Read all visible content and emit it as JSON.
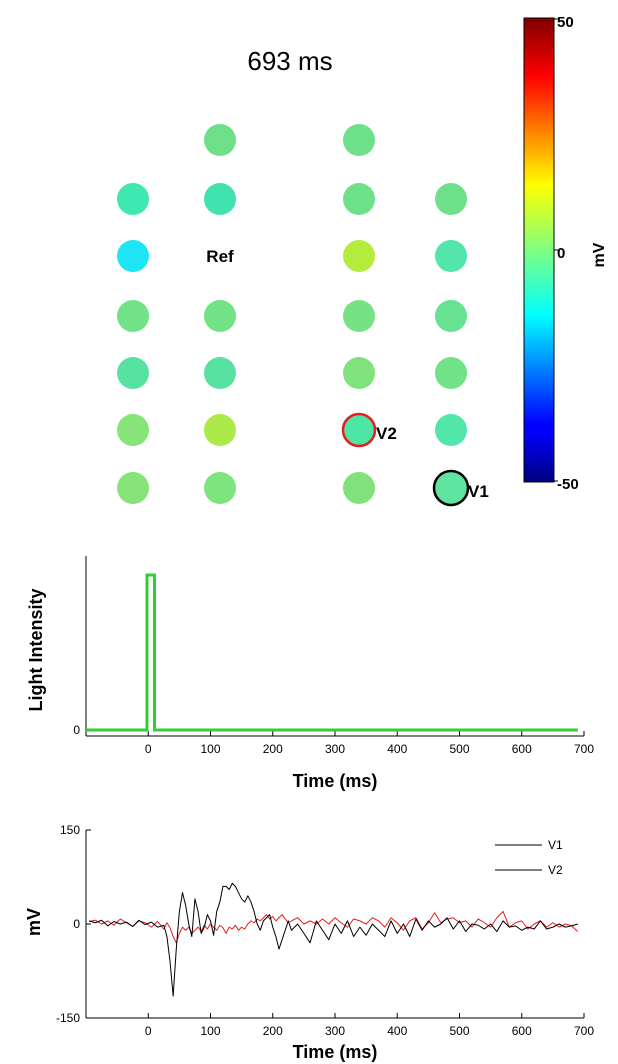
{
  "frame_label": "693 ms",
  "electrode_map": {
    "ref_label": "Ref",
    "marked": [
      {
        "label": "V2",
        "ring_color": "#e02020"
      },
      {
        "label": "V1",
        "ring_color": "#000000"
      }
    ],
    "electrodes": [
      {
        "col": 1,
        "row": 0,
        "color": "#6fe08a"
      },
      {
        "col": 2,
        "row": 0,
        "color": "#6fe08a"
      },
      {
        "col": 0,
        "row": 1,
        "color": "#3fe8b0"
      },
      {
        "col": 1,
        "row": 1,
        "color": "#42e2b0"
      },
      {
        "col": 2,
        "row": 1,
        "color": "#6fe08a"
      },
      {
        "col": 3,
        "row": 1,
        "color": "#6fe08a"
      },
      {
        "col": 0,
        "row": 2,
        "color": "#1fe4f4"
      },
      {
        "col": 2,
        "row": 2,
        "color": "#b4ec3c"
      },
      {
        "col": 3,
        "row": 2,
        "color": "#52e6aa"
      },
      {
        "col": 0,
        "row": 3,
        "color": "#72e286"
      },
      {
        "col": 1,
        "row": 3,
        "color": "#72e286"
      },
      {
        "col": 2,
        "row": 3,
        "color": "#76e284"
      },
      {
        "col": 3,
        "row": 3,
        "color": "#66e292"
      },
      {
        "col": 0,
        "row": 4,
        "color": "#58e2a2"
      },
      {
        "col": 1,
        "row": 4,
        "color": "#58e2a2"
      },
      {
        "col": 2,
        "row": 4,
        "color": "#80e27c"
      },
      {
        "col": 3,
        "row": 4,
        "color": "#72e286"
      },
      {
        "col": 0,
        "row": 5,
        "color": "#86e478"
      },
      {
        "col": 1,
        "row": 5,
        "color": "#acea4a"
      },
      {
        "col": 2,
        "row": 5,
        "color": "#4ee6a6",
        "marker": "V2"
      },
      {
        "col": 3,
        "row": 5,
        "color": "#52e6aa"
      },
      {
        "col": 0,
        "row": 6,
        "color": "#86e478"
      },
      {
        "col": 1,
        "row": 6,
        "color": "#7ee47e"
      },
      {
        "col": 2,
        "row": 6,
        "color": "#80e27c"
      },
      {
        "col": 3,
        "row": 6,
        "color": "#5ee49e",
        "marker": "V1"
      }
    ]
  },
  "colorbar": {
    "max_label": "50",
    "mid_label": "0",
    "min_label": "-50",
    "unit_label": "mV",
    "colormap": "jet"
  },
  "chart_data": [
    {
      "type": "line",
      "title": "",
      "xlabel": "Time (ms)",
      "ylabel": "Light Intensity",
      "xlim": [
        -100,
        700
      ],
      "xticks": [
        "0",
        "100",
        "200",
        "300",
        "400",
        "500",
        "600",
        "700"
      ],
      "yticks": [
        "0"
      ],
      "series": [
        {
          "color": "#33cc33",
          "x": [
            -100,
            -2,
            -2,
            10,
            10,
            690
          ],
          "y": [
            0,
            0,
            1,
            1,
            0,
            0
          ]
        }
      ]
    },
    {
      "type": "line",
      "title": "",
      "xlabel": "Time (ms)",
      "ylabel": "mV",
      "xlim": [
        -100,
        700
      ],
      "ylim": [
        -150,
        150
      ],
      "xticks": [
        "0",
        "100",
        "200",
        "300",
        "400",
        "500",
        "600",
        "700"
      ],
      "yticks": [
        "150",
        "0",
        "-150"
      ],
      "legend_position": "top-right",
      "series": [
        {
          "name": "V1",
          "color": "#000000",
          "x": [
            -95,
            -85,
            -75,
            -65,
            -55,
            -45,
            -35,
            -25,
            -15,
            -5,
            5,
            15,
            25,
            30,
            35,
            40,
            45,
            50,
            55,
            60,
            65,
            70,
            75,
            80,
            85,
            90,
            95,
            100,
            105,
            110,
            115,
            120,
            125,
            130,
            135,
            140,
            145,
            150,
            155,
            160,
            165,
            170,
            175,
            180,
            185,
            190,
            195,
            200,
            205,
            210,
            215,
            220,
            225,
            230,
            240,
            250,
            260,
            270,
            280,
            290,
            300,
            310,
            320,
            330,
            340,
            350,
            360,
            370,
            380,
            390,
            400,
            410,
            420,
            430,
            440,
            450,
            460,
            470,
            480,
            490,
            500,
            510,
            520,
            530,
            540,
            550,
            560,
            570,
            580,
            590,
            600,
            610,
            620,
            630,
            640,
            650,
            660,
            670,
            680,
            690
          ],
          "y": [
            5,
            2,
            6,
            -3,
            4,
            0,
            3,
            -4,
            6,
            -1,
            3,
            -5,
            -2,
            -20,
            -60,
            -115,
            -40,
            20,
            50,
            30,
            0,
            -20,
            40,
            20,
            -15,
            -5,
            15,
            5,
            -18,
            20,
            35,
            60,
            60,
            55,
            65,
            60,
            50,
            40,
            35,
            45,
            35,
            20,
            0,
            -10,
            5,
            10,
            15,
            -5,
            -20,
            -40,
            -25,
            -10,
            5,
            -10,
            0,
            -15,
            -30,
            5,
            -10,
            -25,
            0,
            -15,
            5,
            -20,
            -5,
            -18,
            0,
            -10,
            -20,
            5,
            -15,
            0,
            -20,
            8,
            -10,
            5,
            -5,
            0,
            10,
            -8,
            5,
            -12,
            0,
            -2,
            -8,
            0,
            -12,
            5,
            -5,
            -3,
            -10,
            -5,
            -8,
            5,
            -8,
            -5,
            0,
            -5,
            -3,
            0
          ],
          "linewidth": 1
        },
        {
          "name": "V2",
          "color": "#e02020",
          "x": [
            -95,
            -85,
            -75,
            -65,
            -55,
            -45,
            -35,
            -25,
            -15,
            -5,
            5,
            15,
            25,
            30,
            35,
            40,
            45,
            50,
            55,
            60,
            65,
            70,
            75,
            80,
            85,
            90,
            95,
            100,
            105,
            110,
            115,
            120,
            125,
            130,
            135,
            140,
            145,
            150,
            155,
            160,
            165,
            170,
            175,
            180,
            185,
            190,
            195,
            200,
            205,
            210,
            215,
            220,
            225,
            230,
            240,
            250,
            260,
            270,
            280,
            290,
            300,
            310,
            320,
            330,
            340,
            350,
            360,
            370,
            380,
            390,
            400,
            410,
            420,
            430,
            440,
            450,
            460,
            470,
            480,
            490,
            500,
            510,
            520,
            530,
            540,
            550,
            560,
            570,
            580,
            590,
            600,
            610,
            620,
            630,
            640,
            650,
            660,
            670,
            680,
            690
          ],
          "y": [
            4,
            6,
            0,
            5,
            -2,
            8,
            2,
            -4,
            5,
            2,
            -5,
            4,
            -8,
            2,
            -6,
            -20,
            -30,
            -15,
            -5,
            -10,
            -5,
            -15,
            -10,
            -5,
            -12,
            -2,
            -8,
            0,
            -5,
            -10,
            -2,
            -6,
            -15,
            -5,
            -8,
            -2,
            -10,
            -5,
            -8,
            0,
            5,
            2,
            8,
            5,
            10,
            15,
            8,
            12,
            5,
            10,
            15,
            8,
            2,
            5,
            10,
            0,
            5,
            0,
            8,
            0,
            10,
            2,
            -5,
            8,
            5,
            0,
            10,
            5,
            -5,
            10,
            2,
            -10,
            5,
            10,
            -8,
            2,
            18,
            2,
            8,
            10,
            2,
            5,
            -5,
            8,
            2,
            -5,
            10,
            20,
            -5,
            2,
            5,
            -8,
            0,
            5,
            -5,
            2,
            -5,
            0,
            -3,
            -12
          ],
          "linewidth": 1
        }
      ]
    }
  ]
}
